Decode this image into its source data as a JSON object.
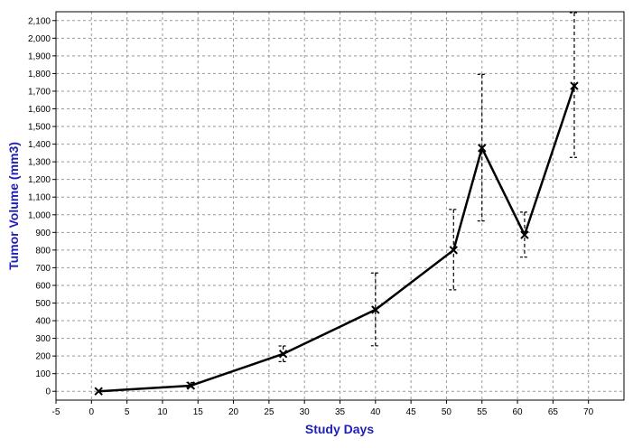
{
  "chart_data": {
    "type": "line",
    "title": "",
    "xlabel": "Study Days",
    "ylabel": "Tumor Volume (mm3)",
    "xlim": [
      -5,
      75
    ],
    "ylim": [
      -50,
      2150
    ],
    "grid": true,
    "x_ticks": [
      "-5",
      "0",
      "5",
      "10",
      "15",
      "20",
      "25",
      "30",
      "35",
      "40",
      "45",
      "50",
      "55",
      "60",
      "65",
      "70"
    ],
    "y_ticks": [
      "0",
      "100",
      "200",
      "300",
      "400",
      "500",
      "600",
      "700",
      "800",
      "900",
      "1,000",
      "1,100",
      "1,200",
      "1,300",
      "1,400",
      "1,500",
      "1,600",
      "1,700",
      "1,800",
      "1,900",
      "2,000",
      "2,100"
    ],
    "series": [
      {
        "x": [
          1,
          14,
          27,
          40,
          51,
          55,
          61,
          68
        ],
        "y": [
          0,
          32,
          212,
          462,
          800,
          1378,
          886,
          1730
        ],
        "error_low": [
          0,
          22,
          168,
          258,
          575,
          965,
          760,
          1325
        ],
        "error_high": [
          0,
          50,
          257,
          670,
          1030,
          1795,
          1015,
          2145
        ]
      }
    ],
    "colors": {
      "line": "#000000",
      "error_bar": "#000000",
      "grid": "#999999",
      "axis_title": "#1f1fb4"
    }
  }
}
